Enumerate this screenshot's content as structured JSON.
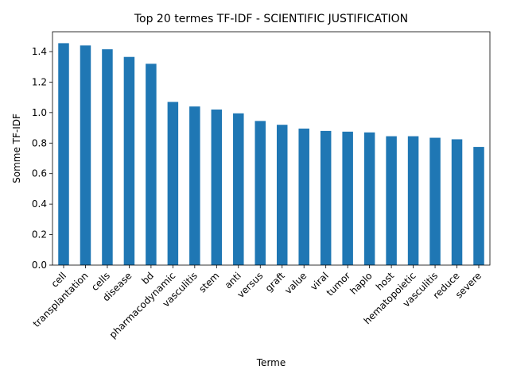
{
  "chart_data": {
    "type": "bar",
    "title": "Top 20 termes TF-IDF - SCIENTIFIC JUSTIFICATION",
    "xlabel": "Terme",
    "ylabel": "Somme TF-IDF",
    "ylim": [
      0,
      1.53
    ],
    "yticks": [
      "0.0",
      "0.2",
      "0.4",
      "0.6",
      "0.8",
      "1.0",
      "1.2",
      "1.4"
    ],
    "grid": false,
    "legend": "none",
    "bar_color": "#1f77b4",
    "categories": [
      "cell",
      "transplantation",
      "cells",
      "disease",
      "bd",
      "pharmacodynamic",
      "vasculitis",
      "stem",
      "anti",
      "versus",
      "graft",
      "value",
      "viral",
      "tumor",
      "haplo",
      "host",
      "hematopoietic",
      "vasculitis",
      "reduce",
      "severe"
    ],
    "values": [
      1.455,
      1.44,
      1.415,
      1.365,
      1.32,
      1.07,
      1.04,
      1.02,
      0.995,
      0.945,
      0.92,
      0.895,
      0.88,
      0.875,
      0.87,
      0.845,
      0.845,
      0.835,
      0.825,
      0.775
    ]
  }
}
